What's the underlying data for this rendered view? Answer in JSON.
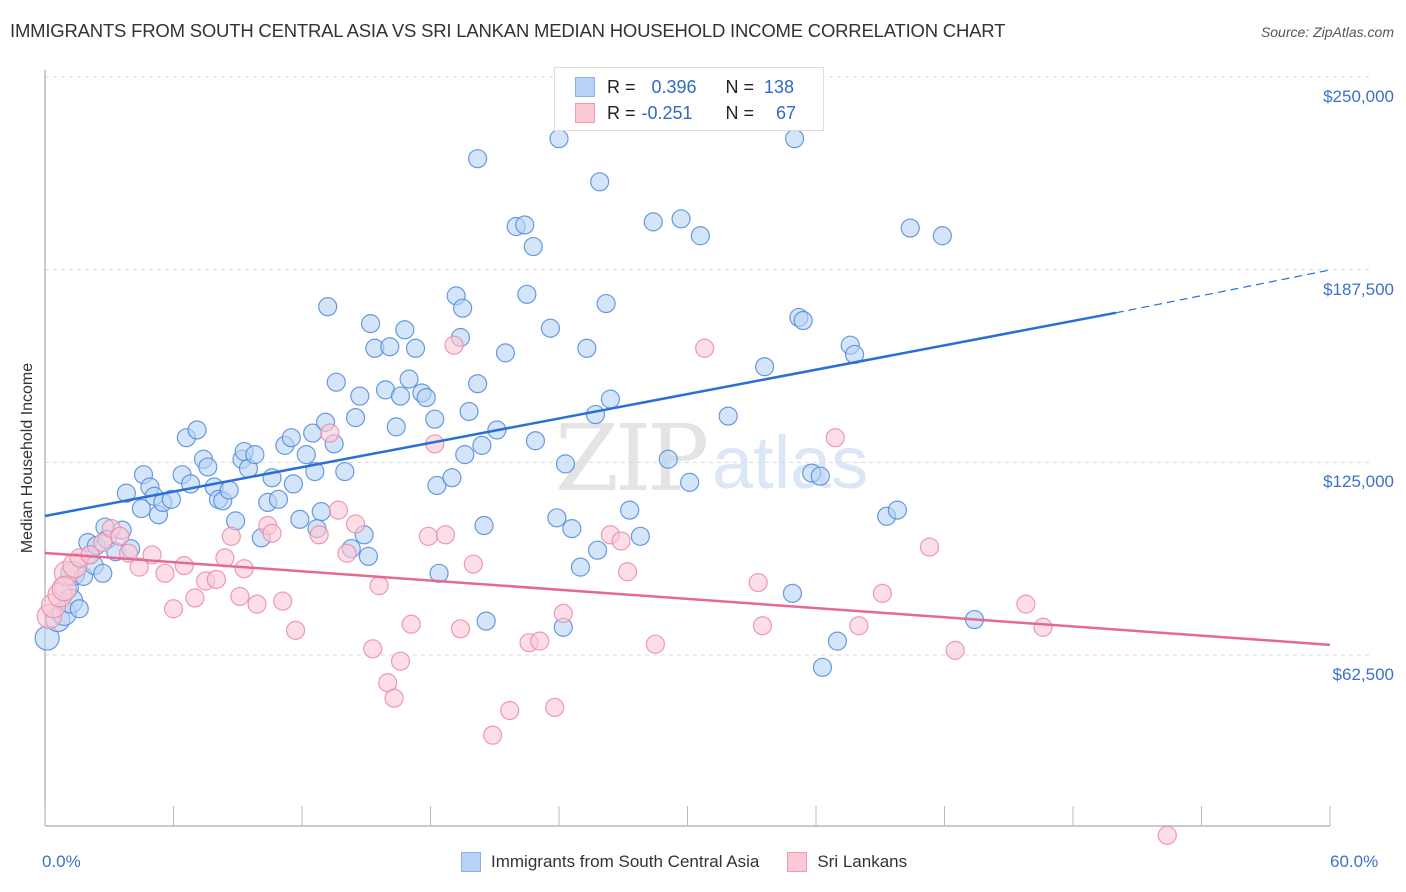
{
  "header": {
    "title": "IMMIGRANTS FROM SOUTH CENTRAL ASIA VS SRI LANKAN MEDIAN HOUSEHOLD INCOME CORRELATION CHART",
    "source": "Source: ZipAtlas.com"
  },
  "watermark": {
    "zip": "ZIP",
    "atlas": "atlas"
  },
  "stats_legend": {
    "rows": [
      {
        "r_label": "R =",
        "r_value": "0.396",
        "n_label": "N =",
        "n_value": "138"
      },
      {
        "r_label": "R =",
        "r_value": "-0.251",
        "n_label": "N =",
        "n_value": "67"
      }
    ]
  },
  "colors": {
    "blue_fill": "#b8d3f5",
    "blue_stroke": "#4f8ad9",
    "blue_line": "#2a6fd6",
    "pink_fill": "#fbc8d6",
    "pink_stroke": "#ea8aa8",
    "pink_line": "#e46a93",
    "axis_text": "#3a72c8"
  },
  "chart_data": {
    "type": "scatter",
    "title": "Immigrants from South Central Asia vs Sri Lankan Median Household Income Correlation Chart",
    "xlabel": "",
    "ylabel": "Median Household Income",
    "xlim": [
      0,
      60
    ],
    "ylim": [
      0,
      260000
    ],
    "x_tick_labels": [
      "0.0%",
      "60.0%"
    ],
    "x_minor_ticks": [
      0,
      6,
      12,
      18,
      24,
      30,
      36,
      42,
      48,
      54,
      60
    ],
    "y_ticks": [
      62500,
      125000,
      187500,
      250000
    ],
    "y_tick_labels": [
      "$62,500",
      "$125,000",
      "$187,500",
      "$250,000"
    ],
    "grid": true,
    "legend": {
      "placement": "bottom-center"
    },
    "series": [
      {
        "name": "Immigrants from South Central Asia",
        "R": 0.396,
        "N": 138,
        "trend": {
          "x": [
            0,
            50
          ],
          "y": [
            107600,
            173500
          ],
          "dashed_extension": {
            "x": [
              50,
              60
            ],
            "y": [
              173500,
              187400
            ]
          }
        },
        "points": [
          [
            0.1,
            68000
          ],
          [
            0.6,
            74000
          ],
          [
            0.9,
            76000
          ],
          [
            1.0,
            84500
          ],
          [
            1.2,
            80000
          ],
          [
            1.3,
            89000
          ],
          [
            1.6,
            77500
          ],
          [
            1.8,
            88000
          ],
          [
            2.0,
            99000
          ],
          [
            2.1,
            95000
          ],
          [
            2.4,
            98000
          ],
          [
            2.3,
            91500
          ],
          [
            2.7,
            89000
          ],
          [
            2.8,
            104000
          ],
          [
            2.9,
            100000
          ],
          [
            3.3,
            96000
          ],
          [
            3.6,
            103000
          ],
          [
            4.0,
            97000
          ],
          [
            3.8,
            115000
          ],
          [
            4.5,
            110000
          ],
          [
            4.6,
            121000
          ],
          [
            4.9,
            117000
          ],
          [
            5.1,
            114000
          ],
          [
            5.3,
            108000
          ],
          [
            5.5,
            112000
          ],
          [
            5.9,
            113000
          ],
          [
            6.4,
            121000
          ],
          [
            6.6,
            133000
          ],
          [
            6.8,
            118000
          ],
          [
            7.1,
            135500
          ],
          [
            7.4,
            126000
          ],
          [
            7.6,
            123500
          ],
          [
            7.9,
            117000
          ],
          [
            8.1,
            113000
          ],
          [
            8.3,
            112500
          ],
          [
            8.6,
            116000
          ],
          [
            8.9,
            106000
          ],
          [
            9.2,
            126000
          ],
          [
            9.3,
            128500
          ],
          [
            9.5,
            123000
          ],
          [
            9.8,
            127500
          ],
          [
            10.1,
            100500
          ],
          [
            10.4,
            112000
          ],
          [
            10.6,
            120000
          ],
          [
            10.9,
            113000
          ],
          [
            11.2,
            130500
          ],
          [
            11.5,
            133000
          ],
          [
            11.6,
            118000
          ],
          [
            11.9,
            106500
          ],
          [
            12.2,
            127500
          ],
          [
            12.5,
            134500
          ],
          [
            12.6,
            122000
          ],
          [
            12.9,
            109000
          ],
          [
            12.7,
            103500
          ],
          [
            13.1,
            138000
          ],
          [
            13.5,
            131000
          ],
          [
            13.6,
            151000
          ],
          [
            13.2,
            175500
          ],
          [
            14.0,
            122000
          ],
          [
            14.3,
            97000
          ],
          [
            14.5,
            139500
          ],
          [
            14.7,
            146500
          ],
          [
            14.9,
            101500
          ],
          [
            15.1,
            94500
          ],
          [
            15.2,
            170000
          ],
          [
            15.4,
            162000
          ],
          [
            15.9,
            148500
          ],
          [
            16.1,
            162500
          ],
          [
            16.4,
            136500
          ],
          [
            16.6,
            146500
          ],
          [
            16.8,
            168000
          ],
          [
            17.0,
            152000
          ],
          [
            17.3,
            162000
          ],
          [
            17.6,
            147500
          ],
          [
            17.8,
            146000
          ],
          [
            18.2,
            139000
          ],
          [
            18.3,
            117500
          ],
          [
            18.4,
            89000
          ],
          [
            19.0,
            120000
          ],
          [
            19.2,
            179000
          ],
          [
            19.4,
            165500
          ],
          [
            19.5,
            175000
          ],
          [
            19.6,
            127500
          ],
          [
            19.8,
            141500
          ],
          [
            20.2,
            150500
          ],
          [
            20.4,
            130500
          ],
          [
            20.5,
            104500
          ],
          [
            20.6,
            73500
          ],
          [
            20.2,
            223500
          ],
          [
            21.1,
            135500
          ],
          [
            21.5,
            160500
          ],
          [
            22.0,
            201500
          ],
          [
            22.5,
            179500
          ],
          [
            22.4,
            202000
          ],
          [
            22.9,
            132000
          ],
          [
            22.8,
            195000
          ],
          [
            23.6,
            168500
          ],
          [
            23.9,
            107000
          ],
          [
            24.0,
            230000
          ],
          [
            24.3,
            124500
          ],
          [
            24.6,
            103500
          ],
          [
            24.2,
            71500
          ],
          [
            25.0,
            91000
          ],
          [
            25.3,
            162000
          ],
          [
            25.8,
            96500
          ],
          [
            25.7,
            140500
          ],
          [
            25.9,
            216000
          ],
          [
            26.4,
            145500
          ],
          [
            26.2,
            176500
          ],
          [
            27.3,
            109500
          ],
          [
            27.8,
            101000
          ],
          [
            28.4,
            203000
          ],
          [
            29.1,
            126000
          ],
          [
            29.7,
            204000
          ],
          [
            30.1,
            118500
          ],
          [
            30.6,
            198500
          ],
          [
            31.9,
            140000
          ],
          [
            33.6,
            156000
          ],
          [
            34.9,
            82500
          ],
          [
            35.2,
            172000
          ],
          [
            35.4,
            171000
          ],
          [
            35.0,
            230000
          ],
          [
            35.8,
            121500
          ],
          [
            36.2,
            120500
          ],
          [
            36.3,
            58500
          ],
          [
            37.0,
            67000
          ],
          [
            37.6,
            163000
          ],
          [
            37.8,
            160000
          ],
          [
            39.3,
            107500
          ],
          [
            39.8,
            109500
          ],
          [
            40.4,
            201000
          ],
          [
            41.9,
            198500
          ],
          [
            43.4,
            74000
          ]
        ]
      },
      {
        "name": "Sri Lankans",
        "R": -0.251,
        "N": 67,
        "trend": {
          "x": [
            0,
            60
          ],
          "y": [
            95600,
            65800
          ]
        },
        "points": [
          [
            0.2,
            75000
          ],
          [
            0.4,
            78500
          ],
          [
            0.7,
            82000
          ],
          [
            1.0,
            89000
          ],
          [
            1.4,
            91500
          ],
          [
            1.6,
            94000
          ],
          [
            2.1,
            95000
          ],
          [
            2.7,
            99000
          ],
          [
            3.1,
            103500
          ],
          [
            3.5,
            101000
          ],
          [
            3.9,
            95500
          ],
          [
            4.4,
            91000
          ],
          [
            5.0,
            95000
          ],
          [
            5.6,
            89000
          ],
          [
            6.0,
            77500
          ],
          [
            6.5,
            91500
          ],
          [
            7.0,
            81000
          ],
          [
            7.5,
            86500
          ],
          [
            8.0,
            87000
          ],
          [
            8.4,
            94000
          ],
          [
            8.7,
            101000
          ],
          [
            9.1,
            81500
          ],
          [
            9.3,
            90500
          ],
          [
            9.9,
            79000
          ],
          [
            10.4,
            104500
          ],
          [
            10.6,
            102000
          ],
          [
            11.1,
            80000
          ],
          [
            11.7,
            70500
          ],
          [
            12.8,
            101500
          ],
          [
            13.3,
            134500
          ],
          [
            13.7,
            109500
          ],
          [
            14.1,
            95500
          ],
          [
            14.5,
            105000
          ],
          [
            15.3,
            64500
          ],
          [
            15.6,
            85000
          ],
          [
            16.0,
            53500
          ],
          [
            16.3,
            48500
          ],
          [
            16.6,
            60500
          ],
          [
            17.1,
            72500
          ],
          [
            17.9,
            101000
          ],
          [
            18.2,
            131000
          ],
          [
            18.7,
            101500
          ],
          [
            19.1,
            163000
          ],
          [
            19.4,
            71000
          ],
          [
            20.0,
            92000
          ],
          [
            20.9,
            36500
          ],
          [
            21.7,
            44500
          ],
          [
            22.6,
            66500
          ],
          [
            23.1,
            67000
          ],
          [
            23.8,
            45500
          ],
          [
            24.2,
            76000
          ],
          [
            26.4,
            101500
          ],
          [
            26.9,
            99500
          ],
          [
            27.2,
            89500
          ],
          [
            28.5,
            66000
          ],
          [
            30.8,
            162000
          ],
          [
            33.3,
            86000
          ],
          [
            33.5,
            72000
          ],
          [
            36.9,
            133000
          ],
          [
            38.0,
            72000
          ],
          [
            39.1,
            82500
          ],
          [
            41.3,
            97500
          ],
          [
            42.5,
            64000
          ],
          [
            45.8,
            79000
          ],
          [
            46.6,
            71500
          ],
          [
            52.4,
            4000
          ],
          [
            0.9,
            84000
          ]
        ]
      }
    ]
  },
  "bottom_legend": {
    "items": [
      {
        "label": "Immigrants from South Central Asia"
      },
      {
        "label": "Sri Lankans"
      }
    ]
  }
}
